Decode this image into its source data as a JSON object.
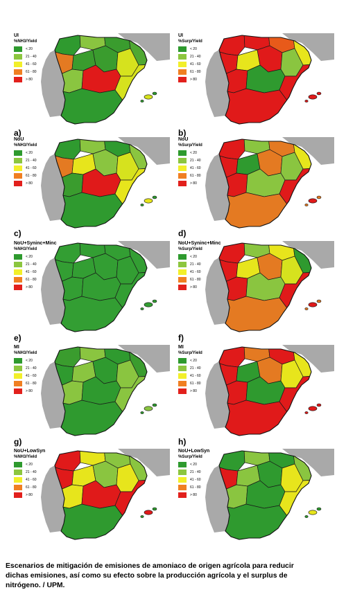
{
  "panels": [
    {
      "id": "a",
      "title": "UI",
      "subtitle": "%NH3/Yield",
      "label": "a)",
      "colors": [
        "#2f9a2f",
        "#8ac540",
        "#3a9c2e",
        "#4fa832",
        "#e47a22",
        "#3a9c2e",
        "#3a9c2e",
        "#d6e21e",
        "#8ac540",
        "#e01a1a",
        "#d6e21e",
        "#2f9a2f"
      ]
    },
    {
      "id": "b",
      "title": "UI",
      "subtitle": "%Surp/Yield",
      "label": "b)",
      "colors": [
        "#e01a1a",
        "#e01a1a",
        "#e85a1a",
        "#e7e51c",
        "#e01a1a",
        "#e7e51c",
        "#e01a1a",
        "#8ac540",
        "#e01a1a",
        "#2f9a2f",
        "#e01a1a",
        "#e01a1a"
      ]
    },
    {
      "id": "c",
      "title": "NoU",
      "subtitle": "%NH3/Yield",
      "label": "c)",
      "colors": [
        "#2f9a2f",
        "#8ac540",
        "#2f9a2f",
        "#8ac540",
        "#e47a22",
        "#e7e51c",
        "#8ac540",
        "#d6e21e",
        "#3a9c2e",
        "#e01a1a",
        "#e7e51c",
        "#2f9a2f"
      ]
    },
    {
      "id": "d",
      "title": "NoU",
      "subtitle": "%Surp/Yield",
      "label": "d)",
      "colors": [
        "#e01a1a",
        "#8ac540",
        "#e47a22",
        "#e7e51c",
        "#e01a1a",
        "#2f9a2f",
        "#e47a22",
        "#8ac540",
        "#e01a1a",
        "#8ac540",
        "#e01a1a",
        "#e47a22"
      ]
    },
    {
      "id": "e",
      "title": "NoU+Syninc+Minc",
      "subtitle": "%NH3/Yield",
      "label": "e)",
      "colors": [
        "#339e33",
        "#339e33",
        "#339e33",
        "#339e33",
        "#339e33",
        "#339e33",
        "#339e33",
        "#339e33",
        "#339e33",
        "#339e33",
        "#339e33",
        "#339e33"
      ]
    },
    {
      "id": "f",
      "title": "NoU+Syninc+Minc",
      "subtitle": "%Surp/Yield",
      "label": "f)",
      "colors": [
        "#e01a1a",
        "#8ac540",
        "#e7e51c",
        "#2f9a2f",
        "#e01a1a",
        "#e7e51c",
        "#e47a22",
        "#d6e21e",
        "#e01a1a",
        "#8ac540",
        "#e01a1a",
        "#e47a22"
      ]
    },
    {
      "id": "g",
      "title": "MI",
      "subtitle": "%NH3/Yield",
      "label": "g)",
      "colors": [
        "#3a9c2e",
        "#8ac540",
        "#2f9a2f",
        "#3a9c2e",
        "#2f9a2f",
        "#8ac540",
        "#2f9a2f",
        "#8ac540",
        "#8ac540",
        "#2f9a2f",
        "#8ac540",
        "#2f9a2f"
      ]
    },
    {
      "id": "h",
      "title": "MI",
      "subtitle": "%Surp/Yield",
      "label": "h)",
      "colors": [
        "#e01a1a",
        "#e47a22",
        "#e01a1a",
        "#e7e51c",
        "#e01a1a",
        "#2f9a2f",
        "#e47a22",
        "#e7e51c",
        "#e01a1a",
        "#2f9a2f",
        "#e01a1a",
        "#e01a1a"
      ]
    },
    {
      "id": "i",
      "title": "NoU+LowSyn",
      "subtitle": "%NH3/Yield",
      "label": "",
      "colors": [
        "#e01a1a",
        "#e7e51c",
        "#8ac540",
        "#8ac540",
        "#e01a1a",
        "#e7e51c",
        "#8ac540",
        "#e7e51c",
        "#e7e51c",
        "#e01a1a",
        "#e01a1a",
        "#2f9a2f"
      ]
    },
    {
      "id": "j",
      "title": "NoU+LowSyn",
      "subtitle": "%Surp/Yield",
      "label": "",
      "colors": [
        "#2f9a2f",
        "#8ac540",
        "#2f9a2f",
        "#8ac540",
        "#e01a1a",
        "#8ac540",
        "#2f9a2f",
        "#e7e51c",
        "#8ac540",
        "#2f9a2f",
        "#e7e51c",
        "#2f9a2f"
      ]
    }
  ],
  "legend": [
    {
      "label": "< 20",
      "color": "#2e9a2e"
    },
    {
      "label": "21 - 40",
      "color": "#8cc63f"
    },
    {
      "label": "41 - 60",
      "color": "#f2ef2a"
    },
    {
      "label": "61 - 80",
      "color": "#f07f22"
    },
    {
      "label": "> 80",
      "color": "#e2201c"
    }
  ],
  "caption": {
    "line1": "Escenarios de mitigación de emisiones de amoniaco de origen agrícola para reducir",
    "line2": "dichas emisiones, así como su efecto sobre la producción agrícola y el surplus de",
    "line3": "nitrógeno. / UPM."
  }
}
